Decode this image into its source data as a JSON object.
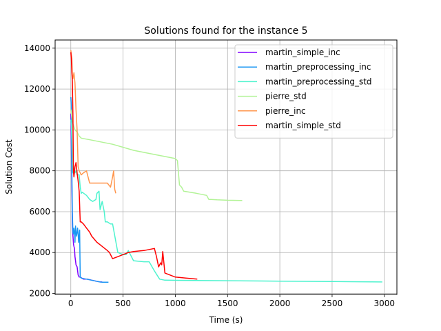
{
  "chart_data": {
    "type": "line",
    "title": "Solutions found for the instance 5",
    "xlabel": "Time (s)",
    "ylabel": "Solution Cost",
    "xlim": [
      -150,
      3120
    ],
    "ylim": [
      1950,
      14400
    ],
    "xticks": [
      0,
      500,
      1000,
      1500,
      2000,
      2500,
      3000
    ],
    "yticks": [
      2000,
      4000,
      6000,
      8000,
      10000,
      12000,
      14000
    ],
    "grid": true,
    "legend_position": "top-right",
    "series": [
      {
        "name": "martin_simple_inc",
        "color": "#8000ff",
        "x": [
          0,
          5,
          8,
          12,
          15,
          18,
          22,
          26,
          30,
          35,
          40,
          45,
          50,
          60,
          70,
          80,
          90,
          120,
          160,
          200,
          240,
          260,
          280,
          300
        ],
        "y": [
          10800,
          9200,
          8000,
          6500,
          5400,
          5000,
          4700,
          4400,
          4300,
          4200,
          3800,
          3600,
          3400,
          3300,
          2900,
          2800,
          2800,
          2700,
          2700,
          2650,
          2600,
          2580,
          2560,
          2560
        ]
      },
      {
        "name": "martin_preprocessing_inc",
        "color": "#1996f3",
        "x": [
          0,
          5,
          10,
          15,
          20,
          25,
          30,
          35,
          40,
          45,
          50,
          55,
          60,
          65,
          70,
          75,
          80,
          85,
          90,
          100,
          150,
          200,
          240,
          260,
          280,
          300,
          340,
          360
        ],
        "y": [
          11600,
          11200,
          8000,
          6000,
          5000,
          4900,
          5200,
          5000,
          4500,
          5300,
          5000,
          4800,
          5000,
          5200,
          4900,
          4500,
          4800,
          5100,
          2800,
          2750,
          2700,
          2650,
          2600,
          2580,
          2560,
          2550,
          2550,
          2550
        ]
      },
      {
        "name": "martin_preprocessing_std",
        "color": "#4df3ce",
        "x": [
          0,
          5,
          10,
          15,
          20,
          25,
          40,
          50,
          60,
          80,
          90,
          100,
          110,
          150,
          180,
          210,
          240,
          250,
          270,
          280,
          300,
          320,
          330,
          350,
          380,
          400,
          450,
          500,
          530,
          550,
          600,
          700,
          750,
          800,
          850,
          900,
          1000,
          1500,
          2000,
          2500,
          2980
        ],
        "y": [
          10500,
          10200,
          9500,
          8300,
          7900,
          8200,
          7900,
          8000,
          7800,
          7800,
          7200,
          6900,
          6950,
          6800,
          6600,
          6500,
          6600,
          6900,
          7000,
          6100,
          6500,
          6000,
          5500,
          5500,
          5400,
          5400,
          4000,
          3900,
          3900,
          4100,
          3600,
          3550,
          3550,
          3100,
          2700,
          2650,
          2640,
          2620,
          2600,
          2580,
          2560
        ]
      },
      {
        "name": "pierre_std",
        "color": "#b2f396",
        "x": [
          0,
          5,
          10,
          20,
          40,
          60,
          80,
          100,
          200,
          400,
          600,
          800,
          1000,
          1020,
          1040,
          1060,
          1080,
          1200,
          1300,
          1320,
          1340,
          1400,
          1500,
          1640
        ],
        "y": [
          11000,
          10800,
          10600,
          10300,
          10000,
          9900,
          9700,
          9600,
          9500,
          9300,
          9000,
          8800,
          8600,
          8500,
          7300,
          7200,
          7000,
          6900,
          6800,
          6600,
          6600,
          6580,
          6560,
          6550
        ]
      },
      {
        "name": "pierre_inc",
        "color": "#ff964d",
        "x": [
          0,
          5,
          10,
          15,
          20,
          30,
          40,
          50,
          60,
          70,
          80,
          90,
          100,
          120,
          150,
          180,
          200,
          250,
          300,
          350,
          380,
          400,
          410,
          420,
          430
        ],
        "y": [
          13900,
          13700,
          13500,
          12700,
          12500,
          12800,
          12300,
          11000,
          10000,
          8200,
          8000,
          7900,
          7800,
          7900,
          8000,
          7400,
          7400,
          7400,
          7400,
          7400,
          7200,
          7700,
          8000,
          7100,
          6900
        ]
      },
      {
        "name": "martin_simple_std",
        "color": "#ff0000",
        "x": [
          0,
          5,
          10,
          15,
          20,
          25,
          30,
          40,
          50,
          60,
          70,
          80,
          90,
          100,
          120,
          150,
          180,
          200,
          250,
          300,
          350,
          370,
          400,
          450,
          500,
          550,
          600,
          700,
          800,
          820,
          840,
          860,
          870,
          880,
          900,
          1000,
          1100,
          1210
        ],
        "y": [
          13800,
          13500,
          12800,
          12400,
          10800,
          8000,
          7700,
          8200,
          8400,
          7900,
          7500,
          7000,
          5500,
          5500,
          5400,
          5200,
          5000,
          4800,
          4500,
          4300,
          4100,
          4000,
          3700,
          3800,
          3900,
          4000,
          4050,
          4100,
          4200,
          3800,
          3300,
          3500,
          3400,
          4050,
          3000,
          2800,
          2750,
          2700
        ]
      }
    ]
  }
}
